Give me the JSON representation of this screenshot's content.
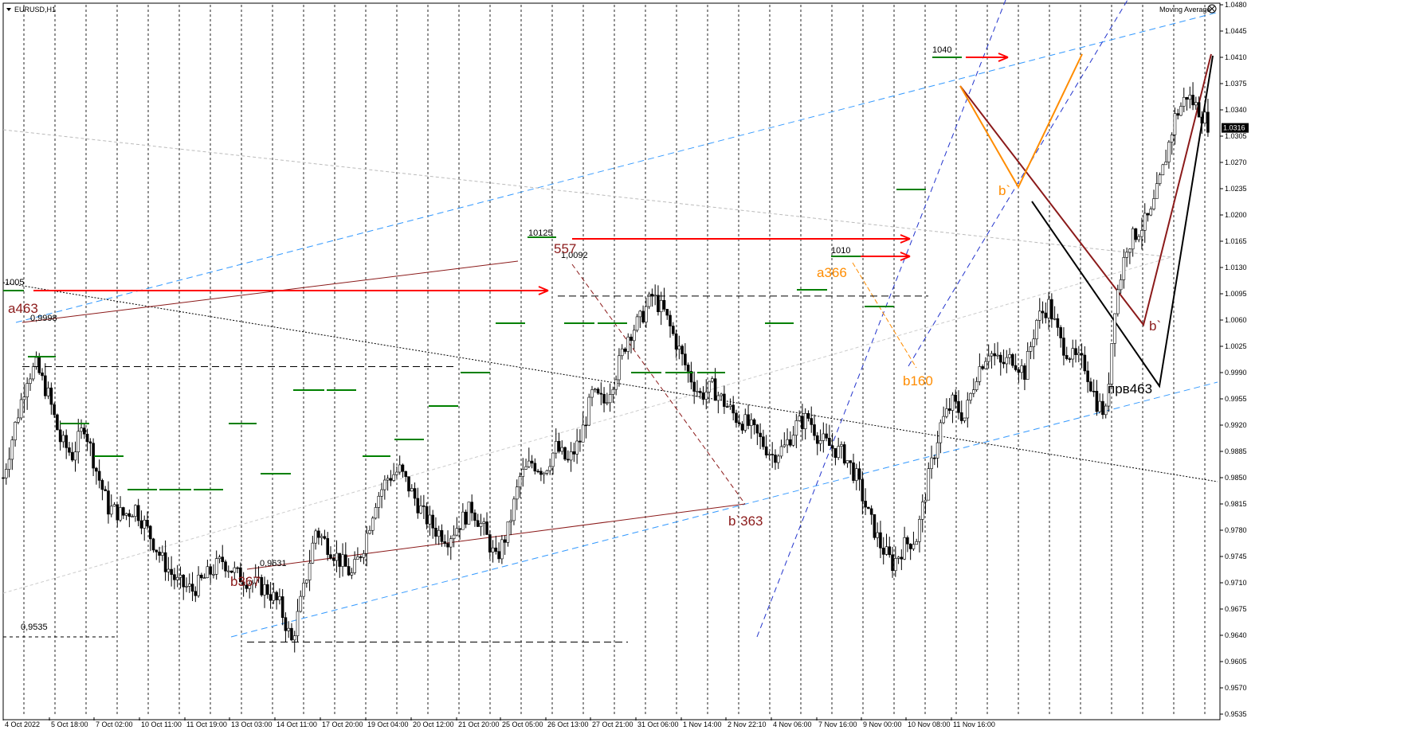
{
  "window": {
    "title": "EURUSD,H1"
  },
  "indicator": {
    "label": "Moving Average"
  },
  "colors": {
    "background": "#ffffff",
    "candle": "#000000",
    "grid": "#000000",
    "channel_light": "#3399ff",
    "channel_dark": "#2233cc",
    "red": "#ff0000",
    "maroon": "#8b1a1a",
    "orange": "#ff8c00",
    "green": "#008000",
    "current_price_bg": "#000000"
  },
  "chart_data": {
    "type": "candlestick",
    "symbol": "EURUSD",
    "timeframe": "H1",
    "ylim": [
      0.9535,
      1.048
    ],
    "y_ticks": [
      "1.0480",
      "1.0445",
      "1.0410",
      "1.0375",
      "1.0340",
      "1.0305",
      "1.0270",
      "1.0235",
      "1.0200",
      "1.0165",
      "1.0130",
      "1.0095",
      "1.0060",
      "1.0025",
      "0.9990",
      "0.9955",
      "0.9920",
      "0.9885",
      "0.9850",
      "0.9815",
      "0.9780",
      "0.9745",
      "0.9710",
      "0.9675",
      "0.9640",
      "0.9605",
      "0.9570",
      "0.9535"
    ],
    "x_ticks": [
      "4 Oct 2022",
      "5 Oct 18:00",
      "7 Oct 02:00",
      "10 Oct 11:00",
      "11 Oct 19:00",
      "13 Oct 03:00",
      "14 Oct 11:00",
      "17 Oct 20:00",
      "19 Oct 04:00",
      "20 Oct 12:00",
      "21 Oct 20:00",
      "25 Oct 05:00",
      "26 Oct 13:00",
      "27 Oct 21:00",
      "31 Oct 06:00",
      "1 Nov 14:00",
      "2 Nov 22:10",
      "4 Nov 06:00",
      "7 Nov 16:00",
      "9 Nov 00:00",
      "10 Nov 08:00",
      "11 Nov 16:00"
    ],
    "current_price": "1.0316",
    "price_path": [
      [
        0,
        0.985
      ],
      [
        4,
        0.992
      ],
      [
        8,
        0.9985
      ],
      [
        11,
        0.9998
      ],
      [
        15,
        0.996
      ],
      [
        19,
        0.99
      ],
      [
        23,
        0.988
      ],
      [
        27,
        0.992
      ],
      [
        31,
        0.986
      ],
      [
        35,
        0.981
      ],
      [
        40,
        0.98
      ],
      [
        44,
        0.981
      ],
      [
        48,
        0.978
      ],
      [
        53,
        0.974
      ],
      [
        58,
        0.971
      ],
      [
        63,
        0.97
      ],
      [
        68,
        0.972
      ],
      [
        73,
        0.974
      ],
      [
        78,
        0.972
      ],
      [
        83,
        0.971
      ],
      [
        88,
        0.97
      ],
      [
        92,
        0.968
      ],
      [
        96,
        0.9631
      ],
      [
        100,
        0.97
      ],
      [
        104,
        0.978
      ],
      [
        108,
        0.976
      ],
      [
        112,
        0.974
      ],
      [
        116,
        0.972
      ],
      [
        120,
        0.976
      ],
      [
        124,
        0.982
      ],
      [
        128,
        0.985
      ],
      [
        132,
        0.986
      ],
      [
        136,
        0.983
      ],
      [
        140,
        0.98
      ],
      [
        144,
        0.978
      ],
      [
        148,
        0.977
      ],
      [
        152,
        0.979
      ],
      [
        156,
        0.981
      ],
      [
        160,
        0.978
      ],
      [
        164,
        0.974
      ],
      [
        168,
        0.978
      ],
      [
        172,
        0.985
      ],
      [
        176,
        0.987
      ],
      [
        180,
        0.986
      ],
      [
        184,
        0.989
      ],
      [
        188,
        0.987
      ],
      [
        192,
        0.99
      ],
      [
        196,
        0.996
      ],
      [
        200,
        0.995
      ],
      [
        204,
        0.999
      ],
      [
        208,
        1.004
      ],
      [
        212,
        1.006
      ],
      [
        216,
        1.0092
      ],
      [
        220,
        1.007
      ],
      [
        224,
        1.003
      ],
      [
        228,
        0.999
      ],
      [
        232,
        0.996
      ],
      [
        236,
        0.997
      ],
      [
        240,
        0.995
      ],
      [
        244,
        0.993
      ],
      [
        248,
        0.992
      ],
      [
        252,
        0.99
      ],
      [
        256,
        0.988
      ],
      [
        260,
        0.989
      ],
      [
        264,
        0.992
      ],
      [
        268,
        0.993
      ],
      [
        272,
        0.99
      ],
      [
        276,
        0.989
      ],
      [
        280,
        0.988
      ],
      [
        284,
        0.985
      ],
      [
        288,
        0.98
      ],
      [
        292,
        0.976
      ],
      [
        296,
        0.9735
      ],
      [
        300,
        0.976
      ],
      [
        304,
        0.977
      ],
      [
        308,
        0.985
      ],
      [
        312,
        0.992
      ],
      [
        316,
        0.995
      ],
      [
        320,
        0.993
      ],
      [
        324,
        0.999
      ],
      [
        328,
        1.002
      ],
      [
        332,
        1.0
      ],
      [
        336,
        1.001
      ],
      [
        340,
        0.999
      ],
      [
        344,
        1.006
      ],
      [
        348,
        1.008
      ],
      [
        352,
        1.003
      ],
      [
        356,
        1.001
      ],
      [
        360,
        1.0
      ],
      [
        364,
        0.995
      ],
      [
        367,
        0.9935
      ],
      [
        370,
        1.008
      ],
      [
        374,
        1.016
      ],
      [
        378,
        1.018
      ],
      [
        382,
        1.02
      ],
      [
        386,
        1.026
      ],
      [
        390,
        1.033
      ],
      [
        394,
        1.036
      ],
      [
        398,
        1.034
      ],
      [
        402,
        1.0316
      ]
    ],
    "levels": [
      {
        "label": "1040",
        "value": 1.0405
      },
      {
        "label": "10125",
        "value": 1.01225
      },
      {
        "label": "1,0092",
        "value": 1.0092
      },
      {
        "label": "1010",
        "value": 1.0101
      },
      {
        "label": "1005",
        "value": 1.005
      },
      {
        "label": "0,9998",
        "value": 0.9998
      },
      {
        "label": "0,9631",
        "value": 0.9631
      },
      {
        "label": "0,9535",
        "value": 0.9535
      }
    ],
    "wave_labels": [
      {
        "label": "a463",
        "color": "#8b1a1a"
      },
      {
        "label": "b367",
        "color": "#8b1a1a"
      },
      {
        "label": "557",
        "color": "#8b1a1a"
      },
      {
        "label": "b`363",
        "color": "#8b1a1a"
      },
      {
        "label": "a366",
        "color": "#ff8c00"
      },
      {
        "label": "b160",
        "color": "#ff8c00"
      },
      {
        "label": "b`",
        "color": "#ff8c00"
      },
      {
        "label": "b`",
        "color": "#8b1a1a"
      },
      {
        "label": "прв463",
        "color": "#000000"
      }
    ]
  }
}
